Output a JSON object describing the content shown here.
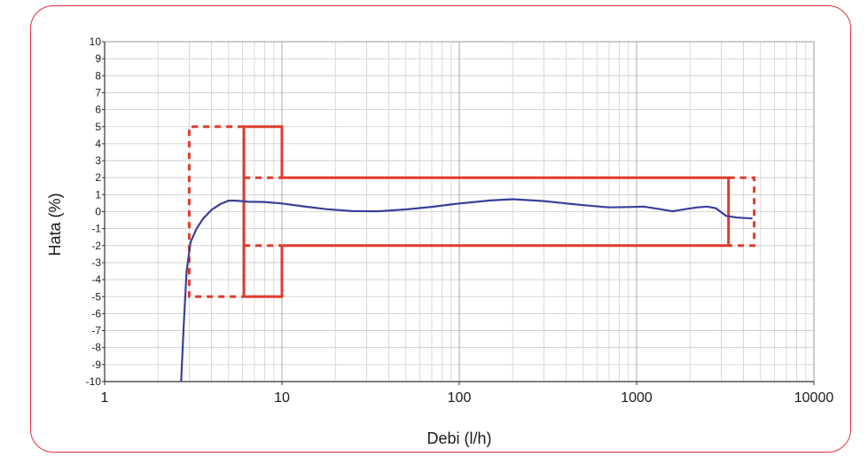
{
  "chart_data": {
    "type": "line",
    "xlabel": "Debi (l/h)",
    "ylabel": "Hata (%)",
    "x_scale": "log",
    "xlim": [
      1,
      10000
    ],
    "ylim": [
      -10,
      10
    ],
    "grid": true,
    "x_ticks": [
      "1",
      "10",
      "100",
      "1000",
      "10000"
    ],
    "y_ticks": [
      "10",
      "9",
      "8",
      "7",
      "6",
      "5",
      "4",
      "3",
      "2",
      "1",
      "0",
      "-1",
      "-2",
      "-3",
      "-4",
      "-5",
      "-6",
      "-7",
      "-8",
      "-9",
      "-10"
    ],
    "series": [
      {
        "style": "solid",
        "color": "#3a3f99",
        "points": [
          [
            2.7,
            -10
          ],
          [
            2.8,
            -6.5
          ],
          [
            2.9,
            -3.5
          ],
          [
            3.05,
            -1.8
          ],
          [
            3.3,
            -1.0
          ],
          [
            3.6,
            -0.4
          ],
          [
            4.0,
            0.1
          ],
          [
            4.5,
            0.45
          ],
          [
            5.0,
            0.65
          ],
          [
            5.5,
            0.65
          ],
          [
            6.5,
            0.58
          ],
          [
            8,
            0.57
          ],
          [
            10,
            0.48
          ],
          [
            13,
            0.32
          ],
          [
            18,
            0.14
          ],
          [
            25,
            0.03
          ],
          [
            35,
            0.02
          ],
          [
            50,
            0.13
          ],
          [
            70,
            0.28
          ],
          [
            100,
            0.48
          ],
          [
            150,
            0.66
          ],
          [
            200,
            0.73
          ],
          [
            300,
            0.62
          ],
          [
            500,
            0.38
          ],
          [
            700,
            0.25
          ],
          [
            900,
            0.27
          ],
          [
            1100,
            0.3
          ],
          [
            1400,
            0.12
          ],
          [
            1600,
            0.02
          ],
          [
            1900,
            0.15
          ],
          [
            2200,
            0.25
          ],
          [
            2500,
            0.3
          ],
          [
            2800,
            0.2
          ],
          [
            3200,
            -0.25
          ],
          [
            3700,
            -0.35
          ],
          [
            4500,
            -0.4
          ]
        ]
      },
      {
        "style": "solid",
        "color": "#e03a2c",
        "points": [
          [
            6.1,
            -5
          ],
          [
            6.1,
            5
          ],
          [
            10,
            5
          ],
          [
            10,
            2
          ],
          [
            3300,
            2
          ],
          [
            3300,
            -2
          ],
          [
            10,
            -2
          ],
          [
            10,
            -5
          ],
          [
            6.1,
            -5
          ]
        ]
      },
      {
        "style": "dashed",
        "color": "#e03a2c",
        "points": [
          [
            6.1,
            5
          ],
          [
            3.0,
            5
          ],
          [
            3.0,
            -5
          ],
          [
            6.1,
            -5
          ]
        ]
      },
      {
        "style": "dashed",
        "color": "#e03a2c",
        "points": [
          [
            6.1,
            2
          ],
          [
            10,
            2
          ]
        ]
      },
      {
        "style": "dashed",
        "color": "#e03a2c",
        "points": [
          [
            6.1,
            -2
          ],
          [
            10,
            -2
          ]
        ]
      },
      {
        "style": "dashed",
        "color": "#e03a2c",
        "points": [
          [
            3300,
            2
          ],
          [
            4600,
            2
          ],
          [
            4600,
            -2
          ],
          [
            3300,
            -2
          ]
        ]
      }
    ]
  }
}
